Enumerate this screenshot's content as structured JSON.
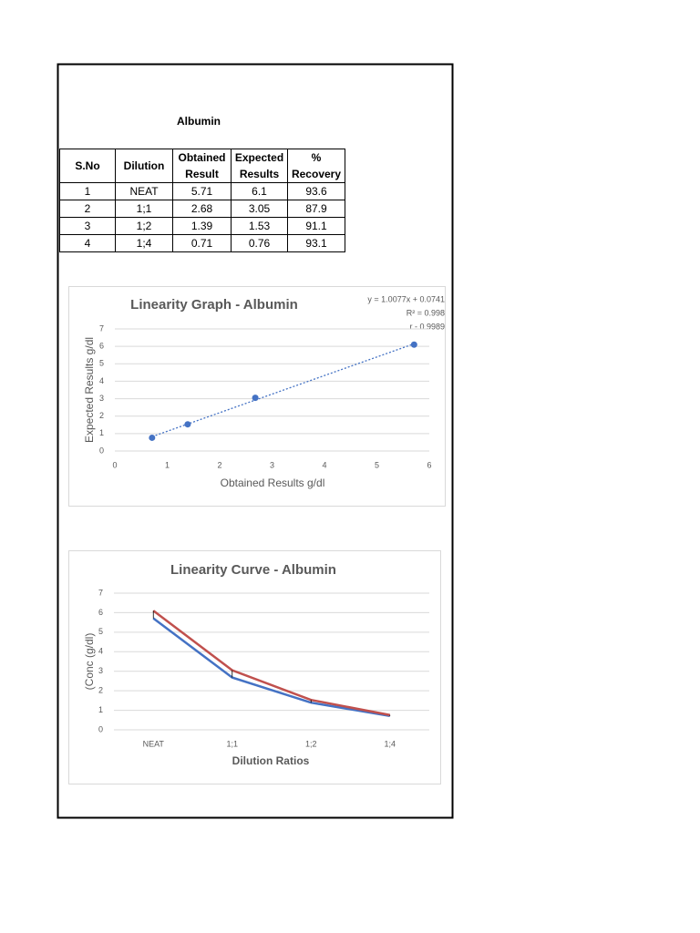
{
  "title": "Albumin",
  "table": {
    "header": [
      "S.No",
      "Dilution",
      "Obtained Result",
      "Expected Results",
      "% Recovery"
    ],
    "rows": [
      [
        1,
        "NEAT",
        5.71,
        6.1,
        93.6
      ],
      [
        2,
        "1;1",
        2.68,
        3.05,
        87.9
      ],
      [
        3,
        "1;2",
        1.39,
        1.53,
        91.1
      ],
      [
        4,
        "1;4",
        0.71,
        0.76,
        93.1
      ]
    ]
  },
  "chart_data": [
    {
      "type": "scatter",
      "title": "Linearity Graph - Albumin",
      "annotations": [
        "y = 1.0077x + 0.0741",
        "R² = 0.998",
        "r - 0.9989"
      ],
      "x_label": "Obtained Results g/dl",
      "y_label": "Expected Results g/dl",
      "x": [
        5.71,
        2.68,
        1.39,
        0.71
      ],
      "values": [
        6.1,
        3.05,
        1.53,
        0.76
      ],
      "color": "#4472c4",
      "trendline": true,
      "xlim": [
        0,
        6
      ],
      "xticks": [
        0,
        1,
        2,
        3,
        4,
        5,
        6
      ],
      "ylim": [
        0,
        7
      ],
      "yticks": [
        0,
        1,
        2,
        3,
        4,
        5,
        6,
        7
      ],
      "grid": true
    },
    {
      "type": "line",
      "title": "Linearity Curve - Albumin",
      "x_label": "Dilution Ratios",
      "y_label": "(Conc (g/dl)",
      "categories": [
        "NEAT",
        "1;1",
        "1;2",
        "1;4"
      ],
      "series": [
        {
          "color": "#4472c4",
          "values": [
            5.71,
            2.68,
            1.39,
            0.71
          ]
        },
        {
          "color": "#c0504d",
          "values": [
            6.1,
            3.05,
            1.53,
            0.76
          ]
        }
      ],
      "high_low_lines": true,
      "ylim": [
        0,
        7
      ],
      "yticks": [
        0,
        1,
        2,
        3,
        4,
        5,
        6,
        7
      ],
      "grid": true
    }
  ]
}
